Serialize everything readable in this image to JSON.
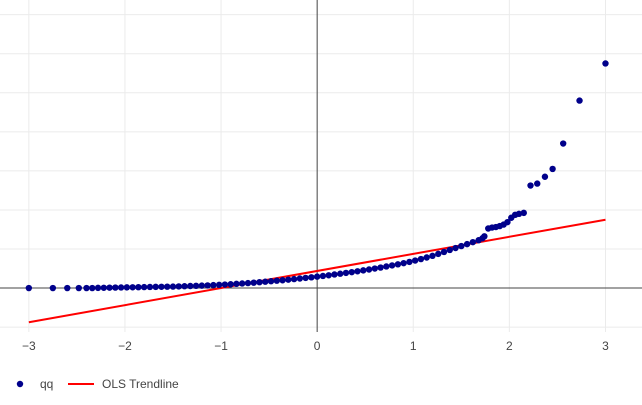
{
  "chart_data": {
    "type": "scatter",
    "title": "",
    "xlabel": "",
    "ylabel": "",
    "xlim": [
      -3.3,
      3.38
    ],
    "ylim": [
      -0.45,
      2.95
    ],
    "x_ticks": [
      -3,
      -2,
      -1,
      0,
      1,
      2,
      3
    ],
    "x_tick_labels": [
      "−3",
      "−2",
      "−1",
      "0",
      "1",
      "2",
      "3"
    ],
    "y_gridlines": [
      -0.4,
      0,
      0.4,
      0.8,
      1.2,
      1.6,
      2.0,
      2.4,
      2.8
    ],
    "grid": true,
    "legend_position": "bottom-left",
    "legend": [
      {
        "label": "qq",
        "symbol": "marker",
        "color": "#00008b"
      },
      {
        "label": "OLS Trendline",
        "symbol": "line",
        "color": "#ff0000"
      }
    ],
    "series": [
      {
        "name": "qq",
        "mode": "markers",
        "color": "#00008b",
        "points": [
          [
            -3.0,
            0.0
          ],
          [
            -2.75,
            0.0
          ],
          [
            -2.6,
            0.0
          ],
          [
            -2.48,
            0.0
          ],
          [
            -2.4,
            0.0
          ],
          [
            -2.34,
            0.0
          ],
          [
            -2.28,
            0.002
          ],
          [
            -2.22,
            0.003
          ],
          [
            -2.16,
            0.004
          ],
          [
            -2.1,
            0.005
          ],
          [
            -2.04,
            0.006
          ],
          [
            -1.98,
            0.007
          ],
          [
            -1.92,
            0.008
          ],
          [
            -1.86,
            0.009
          ],
          [
            -1.8,
            0.01
          ],
          [
            -1.74,
            0.011
          ],
          [
            -1.68,
            0.012
          ],
          [
            -1.62,
            0.013
          ],
          [
            -1.56,
            0.014
          ],
          [
            -1.5,
            0.015
          ],
          [
            -1.44,
            0.017
          ],
          [
            -1.38,
            0.019
          ],
          [
            -1.32,
            0.021
          ],
          [
            -1.26,
            0.023
          ],
          [
            -1.2,
            0.025
          ],
          [
            -1.14,
            0.027
          ],
          [
            -1.08,
            0.03
          ],
          [
            -1.02,
            0.033
          ],
          [
            -0.96,
            0.036
          ],
          [
            -0.9,
            0.039
          ],
          [
            -0.84,
            0.043
          ],
          [
            -0.78,
            0.047
          ],
          [
            -0.72,
            0.051
          ],
          [
            -0.66,
            0.055
          ],
          [
            -0.6,
            0.06
          ],
          [
            -0.54,
            0.065
          ],
          [
            -0.48,
            0.07
          ],
          [
            -0.42,
            0.075
          ],
          [
            -0.36,
            0.08
          ],
          [
            -0.3,
            0.086
          ],
          [
            -0.24,
            0.092
          ],
          [
            -0.18,
            0.098
          ],
          [
            -0.12,
            0.104
          ],
          [
            -0.06,
            0.11
          ],
          [
            0.0,
            0.117
          ],
          [
            0.06,
            0.124
          ],
          [
            0.12,
            0.131
          ],
          [
            0.18,
            0.139
          ],
          [
            0.24,
            0.147
          ],
          [
            0.3,
            0.155
          ],
          [
            0.36,
            0.163
          ],
          [
            0.42,
            0.172
          ],
          [
            0.48,
            0.181
          ],
          [
            0.54,
            0.19
          ],
          [
            0.6,
            0.2
          ],
          [
            0.66,
            0.21
          ],
          [
            0.72,
            0.221
          ],
          [
            0.78,
            0.232
          ],
          [
            0.84,
            0.243
          ],
          [
            0.9,
            0.255
          ],
          [
            0.96,
            0.268
          ],
          [
            1.02,
            0.282
          ],
          [
            1.08,
            0.297
          ],
          [
            1.14,
            0.313
          ],
          [
            1.2,
            0.33
          ],
          [
            1.26,
            0.35
          ],
          [
            1.32,
            0.37
          ],
          [
            1.38,
            0.39
          ],
          [
            1.44,
            0.41
          ],
          [
            1.5,
            0.43
          ],
          [
            1.56,
            0.45
          ],
          [
            1.62,
            0.47
          ],
          [
            1.68,
            0.49
          ],
          [
            1.72,
            0.51
          ],
          [
            1.74,
            0.53
          ],
          [
            1.78,
            0.61
          ],
          [
            1.82,
            0.62
          ],
          [
            1.86,
            0.625
          ],
          [
            1.9,
            0.635
          ],
          [
            1.94,
            0.65
          ],
          [
            1.98,
            0.675
          ],
          [
            2.02,
            0.72
          ],
          [
            2.06,
            0.75
          ],
          [
            2.1,
            0.76
          ],
          [
            2.15,
            0.77
          ],
          [
            2.22,
            1.05
          ],
          [
            2.29,
            1.07
          ],
          [
            2.37,
            1.14
          ],
          [
            2.45,
            1.22
          ],
          [
            2.56,
            1.48
          ],
          [
            2.73,
            1.92
          ],
          [
            3.0,
            2.3
          ]
        ]
      },
      {
        "name": "OLS Trendline",
        "mode": "lines",
        "color": "#ff0000",
        "points": [
          [
            -3.0,
            -0.35
          ],
          [
            3.0,
            0.7
          ]
        ]
      }
    ]
  }
}
